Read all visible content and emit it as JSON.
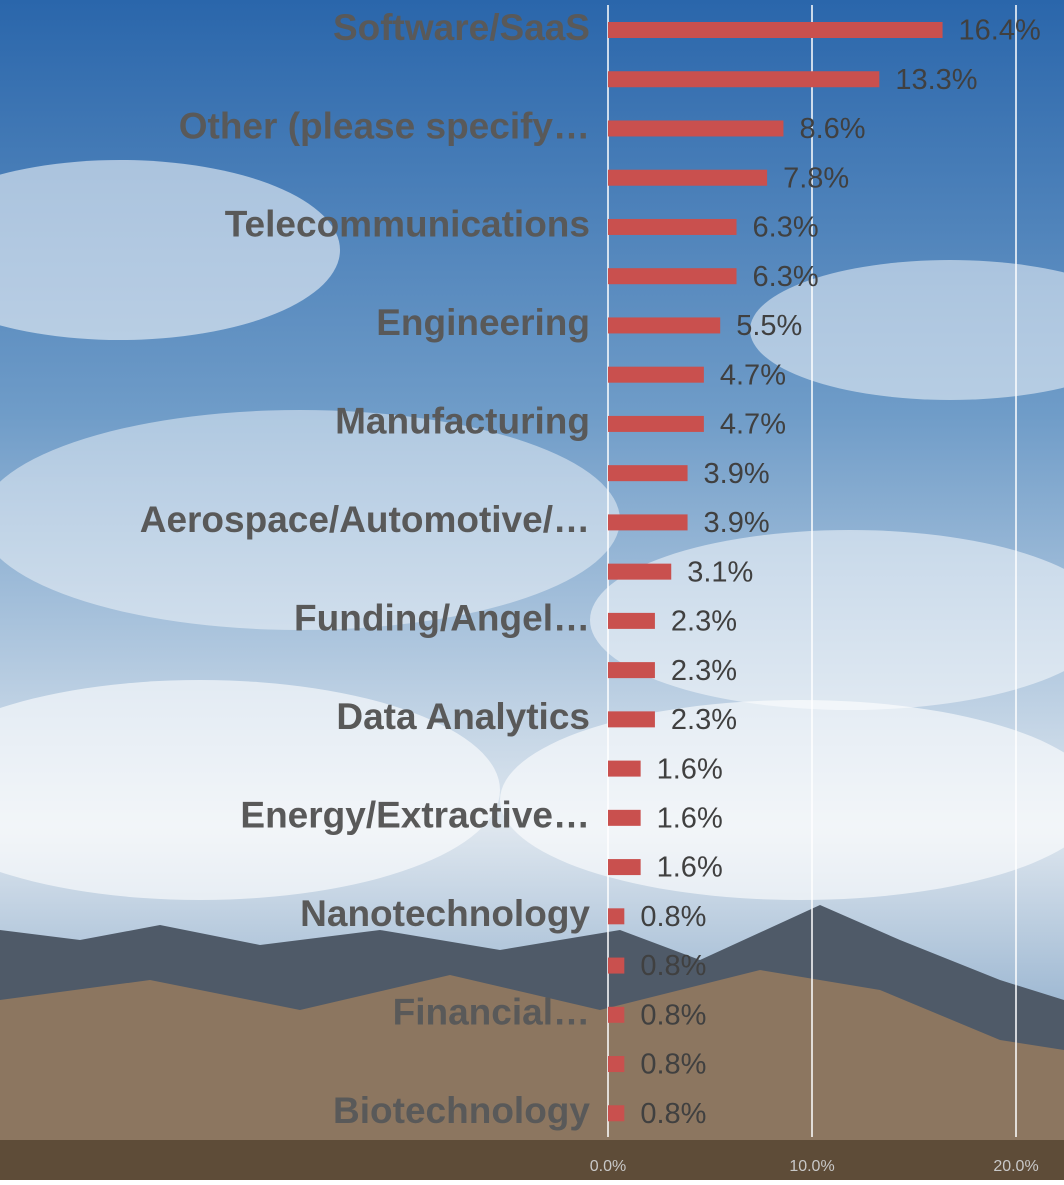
{
  "chart_data": {
    "type": "bar",
    "orientation": "horizontal",
    "categories": [
      "Software/SaaS",
      null,
      "Other (please specify…",
      null,
      "Telecommunications",
      null,
      "Engineering",
      null,
      "Manufacturing",
      null,
      "Aerospace/Automotive/…",
      null,
      "Funding/Angel…",
      null,
      "Data Analytics",
      null,
      "Energy/Extractive…",
      null,
      "Nanotechnology",
      null,
      "Financial…",
      null,
      "Biotechnology"
    ],
    "values": [
      16.4,
      13.3,
      8.6,
      7.8,
      6.3,
      6.3,
      5.5,
      4.7,
      4.7,
      3.9,
      3.9,
      3.1,
      2.3,
      2.3,
      2.3,
      1.6,
      1.6,
      1.6,
      0.8,
      0.8,
      0.8,
      0.8,
      0.8
    ],
    "value_labels": [
      "16.4%",
      "13.3%",
      "8.6%",
      "7.8%",
      "6.3%",
      "6.3%",
      "5.5%",
      "4.7%",
      "4.7%",
      "3.9%",
      "3.9%",
      "3.1%",
      "2.3%",
      "2.3%",
      "2.3%",
      "1.6%",
      "1.6%",
      "1.6%",
      "0.8%",
      "0.8%",
      "0.8%",
      "0.8%",
      "0.8%"
    ],
    "color": "#c9504e",
    "xlim": [
      0,
      20
    ],
    "xticks": [
      {
        "value": 0,
        "label": "0.0%"
      },
      {
        "value": 10,
        "label": "10.0%"
      },
      {
        "value": 20,
        "label": "20.0%"
      }
    ],
    "grid": true
  }
}
